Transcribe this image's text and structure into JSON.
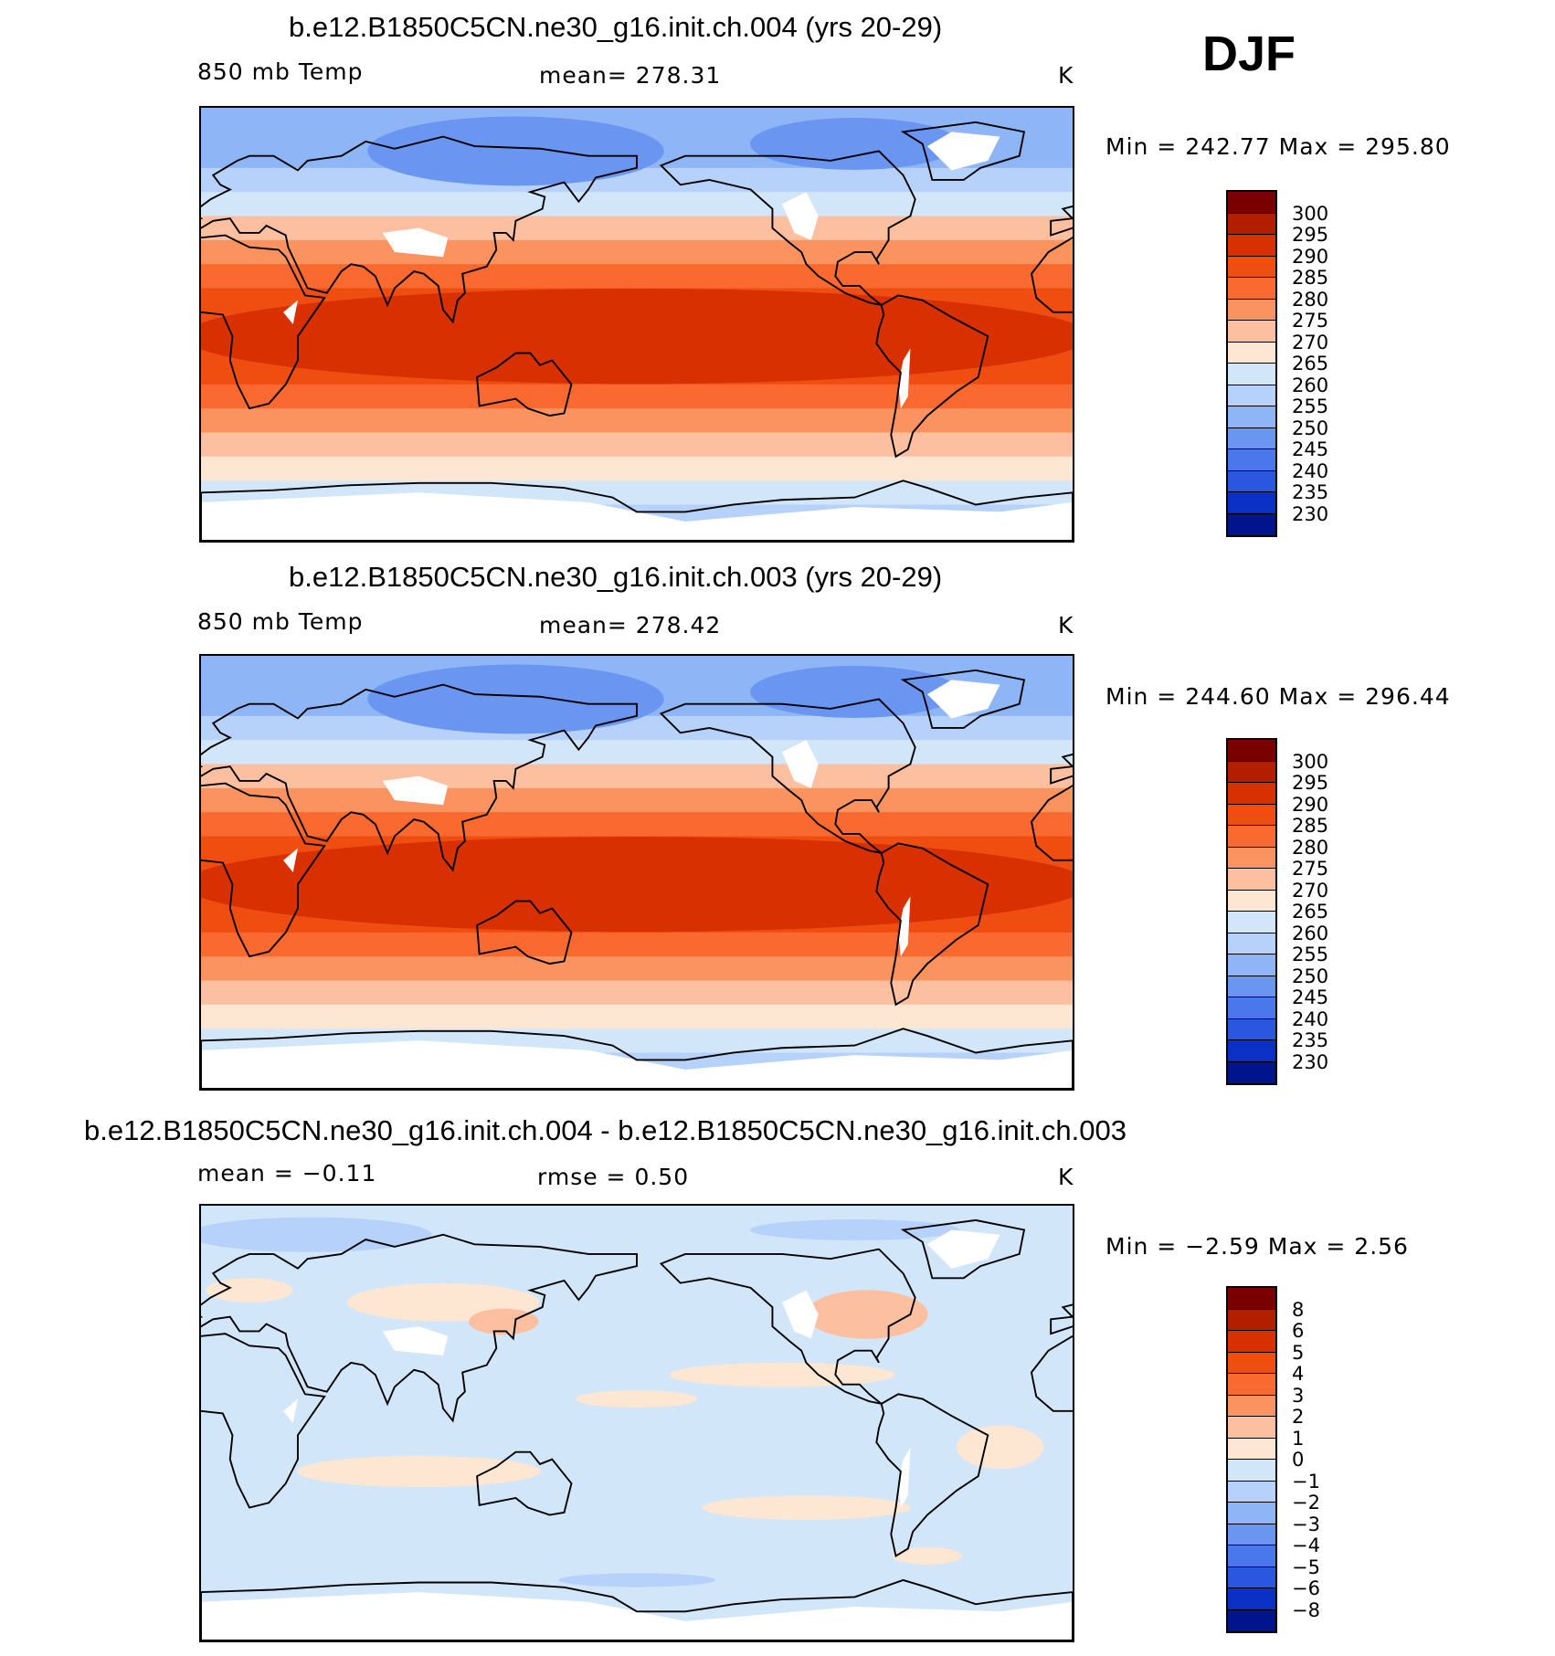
{
  "season": "DJF",
  "panels": [
    {
      "title": "b.e12.B1850C5CN.ne30_g16.init.ch.004 (yrs 20-29)",
      "left_label": "850 mb Temp",
      "center_label": "mean=  278.31",
      "units": "K",
      "minmax": "Min  =  242.77  Max  =  295.80",
      "colorbar_ticks": [
        "300",
        "295",
        "290",
        "285",
        "280",
        "275",
        "270",
        "265",
        "260",
        "255",
        "250",
        "245",
        "240",
        "235",
        "230"
      ]
    },
    {
      "title": "b.e12.B1850C5CN.ne30_g16.init.ch.003 (yrs 20-29)",
      "left_label": "850 mb Temp",
      "center_label": "mean=  278.42",
      "units": "K",
      "minmax": "Min  =  244.60  Max  =  296.44",
      "colorbar_ticks": [
        "300",
        "295",
        "290",
        "285",
        "280",
        "275",
        "270",
        "265",
        "260",
        "255",
        "250",
        "245",
        "240",
        "235",
        "230"
      ]
    },
    {
      "title": "b.e12.B1850C5CN.ne30_g16.init.ch.004 - b.e12.B1850C5CN.ne30_g16.init.ch.003",
      "left_label": "mean  =    −0.11",
      "center_label": "rmse  =     0.50",
      "units": "K",
      "minmax": "Min  =    −2.59  Max  =     2.56",
      "colorbar_ticks": [
        "8",
        "6",
        "5",
        "4",
        "3",
        "2",
        "1",
        "0",
        "−1",
        "−2",
        "−3",
        "−4",
        "−5",
        "−6",
        "−8"
      ]
    }
  ],
  "colors": {
    "temp_scale": [
      "#7a0000",
      "#b31d00",
      "#d83000",
      "#f04e10",
      "#fa6a30",
      "#fb9360",
      "#fcc0a0",
      "#fde6d2",
      "#d2e6fa",
      "#b6d2fa",
      "#8eb6f6",
      "#6a96f2",
      "#4a78ec",
      "#2a56e0",
      "#0a30c6",
      "#00148e"
    ],
    "diff_scale": [
      "#7a0000",
      "#b31d00",
      "#d83000",
      "#f04e10",
      "#fa6a30",
      "#fb9360",
      "#fcc0a0",
      "#fde6d2",
      "#d2e6fa",
      "#b6d2fa",
      "#8eb6f6",
      "#6a96f2",
      "#4a78ec",
      "#2a56e0",
      "#0a30c6",
      "#00148e"
    ],
    "missing": "#ffffff",
    "coast": "#000000"
  },
  "chart_data": [
    {
      "type": "heatmap",
      "title": "b.e12.B1850C5CN.ne30_g16.init.ch.004 (yrs 20-29)",
      "variable": "850 mb Temp",
      "units": "K",
      "mean": 278.31,
      "min": 242.77,
      "max": 295.8,
      "contour_levels": [
        230,
        235,
        240,
        245,
        250,
        255,
        260,
        265,
        270,
        275,
        280,
        285,
        290,
        295,
        300
      ],
      "projection": "cylindrical equidistant, centered 180",
      "zonal_profile": {
        "lat": [
          90,
          75,
          65,
          55,
          45,
          35,
          25,
          15,
          0,
          -15,
          -25,
          -35,
          -45,
          -55,
          -65,
          -75,
          -90
        ],
        "value": [
          248,
          252,
          257,
          262,
          267,
          274,
          282,
          287,
          290,
          289,
          286,
          280,
          274,
          268,
          263,
          258,
          255
        ]
      }
    },
    {
      "type": "heatmap",
      "title": "b.e12.B1850C5CN.ne30_g16.init.ch.003 (yrs 20-29)",
      "variable": "850 mb Temp",
      "units": "K",
      "mean": 278.42,
      "min": 244.6,
      "max": 296.44,
      "contour_levels": [
        230,
        235,
        240,
        245,
        250,
        255,
        260,
        265,
        270,
        275,
        280,
        285,
        290,
        295,
        300
      ],
      "projection": "cylindrical equidistant, centered 180",
      "zonal_profile": {
        "lat": [
          90,
          75,
          65,
          55,
          45,
          35,
          25,
          15,
          0,
          -15,
          -25,
          -35,
          -45,
          -55,
          -65,
          -75,
          -90
        ],
        "value": [
          249,
          252,
          257,
          262,
          267,
          274,
          282,
          287,
          290,
          289,
          286,
          280,
          274,
          268,
          263,
          258,
          255
        ]
      }
    },
    {
      "type": "heatmap",
      "title": "b.e12.B1850C5CN.ne30_g16.init.ch.004 - b.e12.B1850C5CN.ne30_g16.init.ch.003",
      "units": "K",
      "mean": -0.11,
      "rmse": 0.5,
      "min": -2.59,
      "max": 2.56,
      "contour_levels": [
        -8,
        -6,
        -5,
        -4,
        -3,
        -2,
        -1,
        0,
        1,
        2,
        3,
        4,
        5,
        6,
        8
      ],
      "projection": "cylindrical equidistant, centered 180"
    }
  ]
}
